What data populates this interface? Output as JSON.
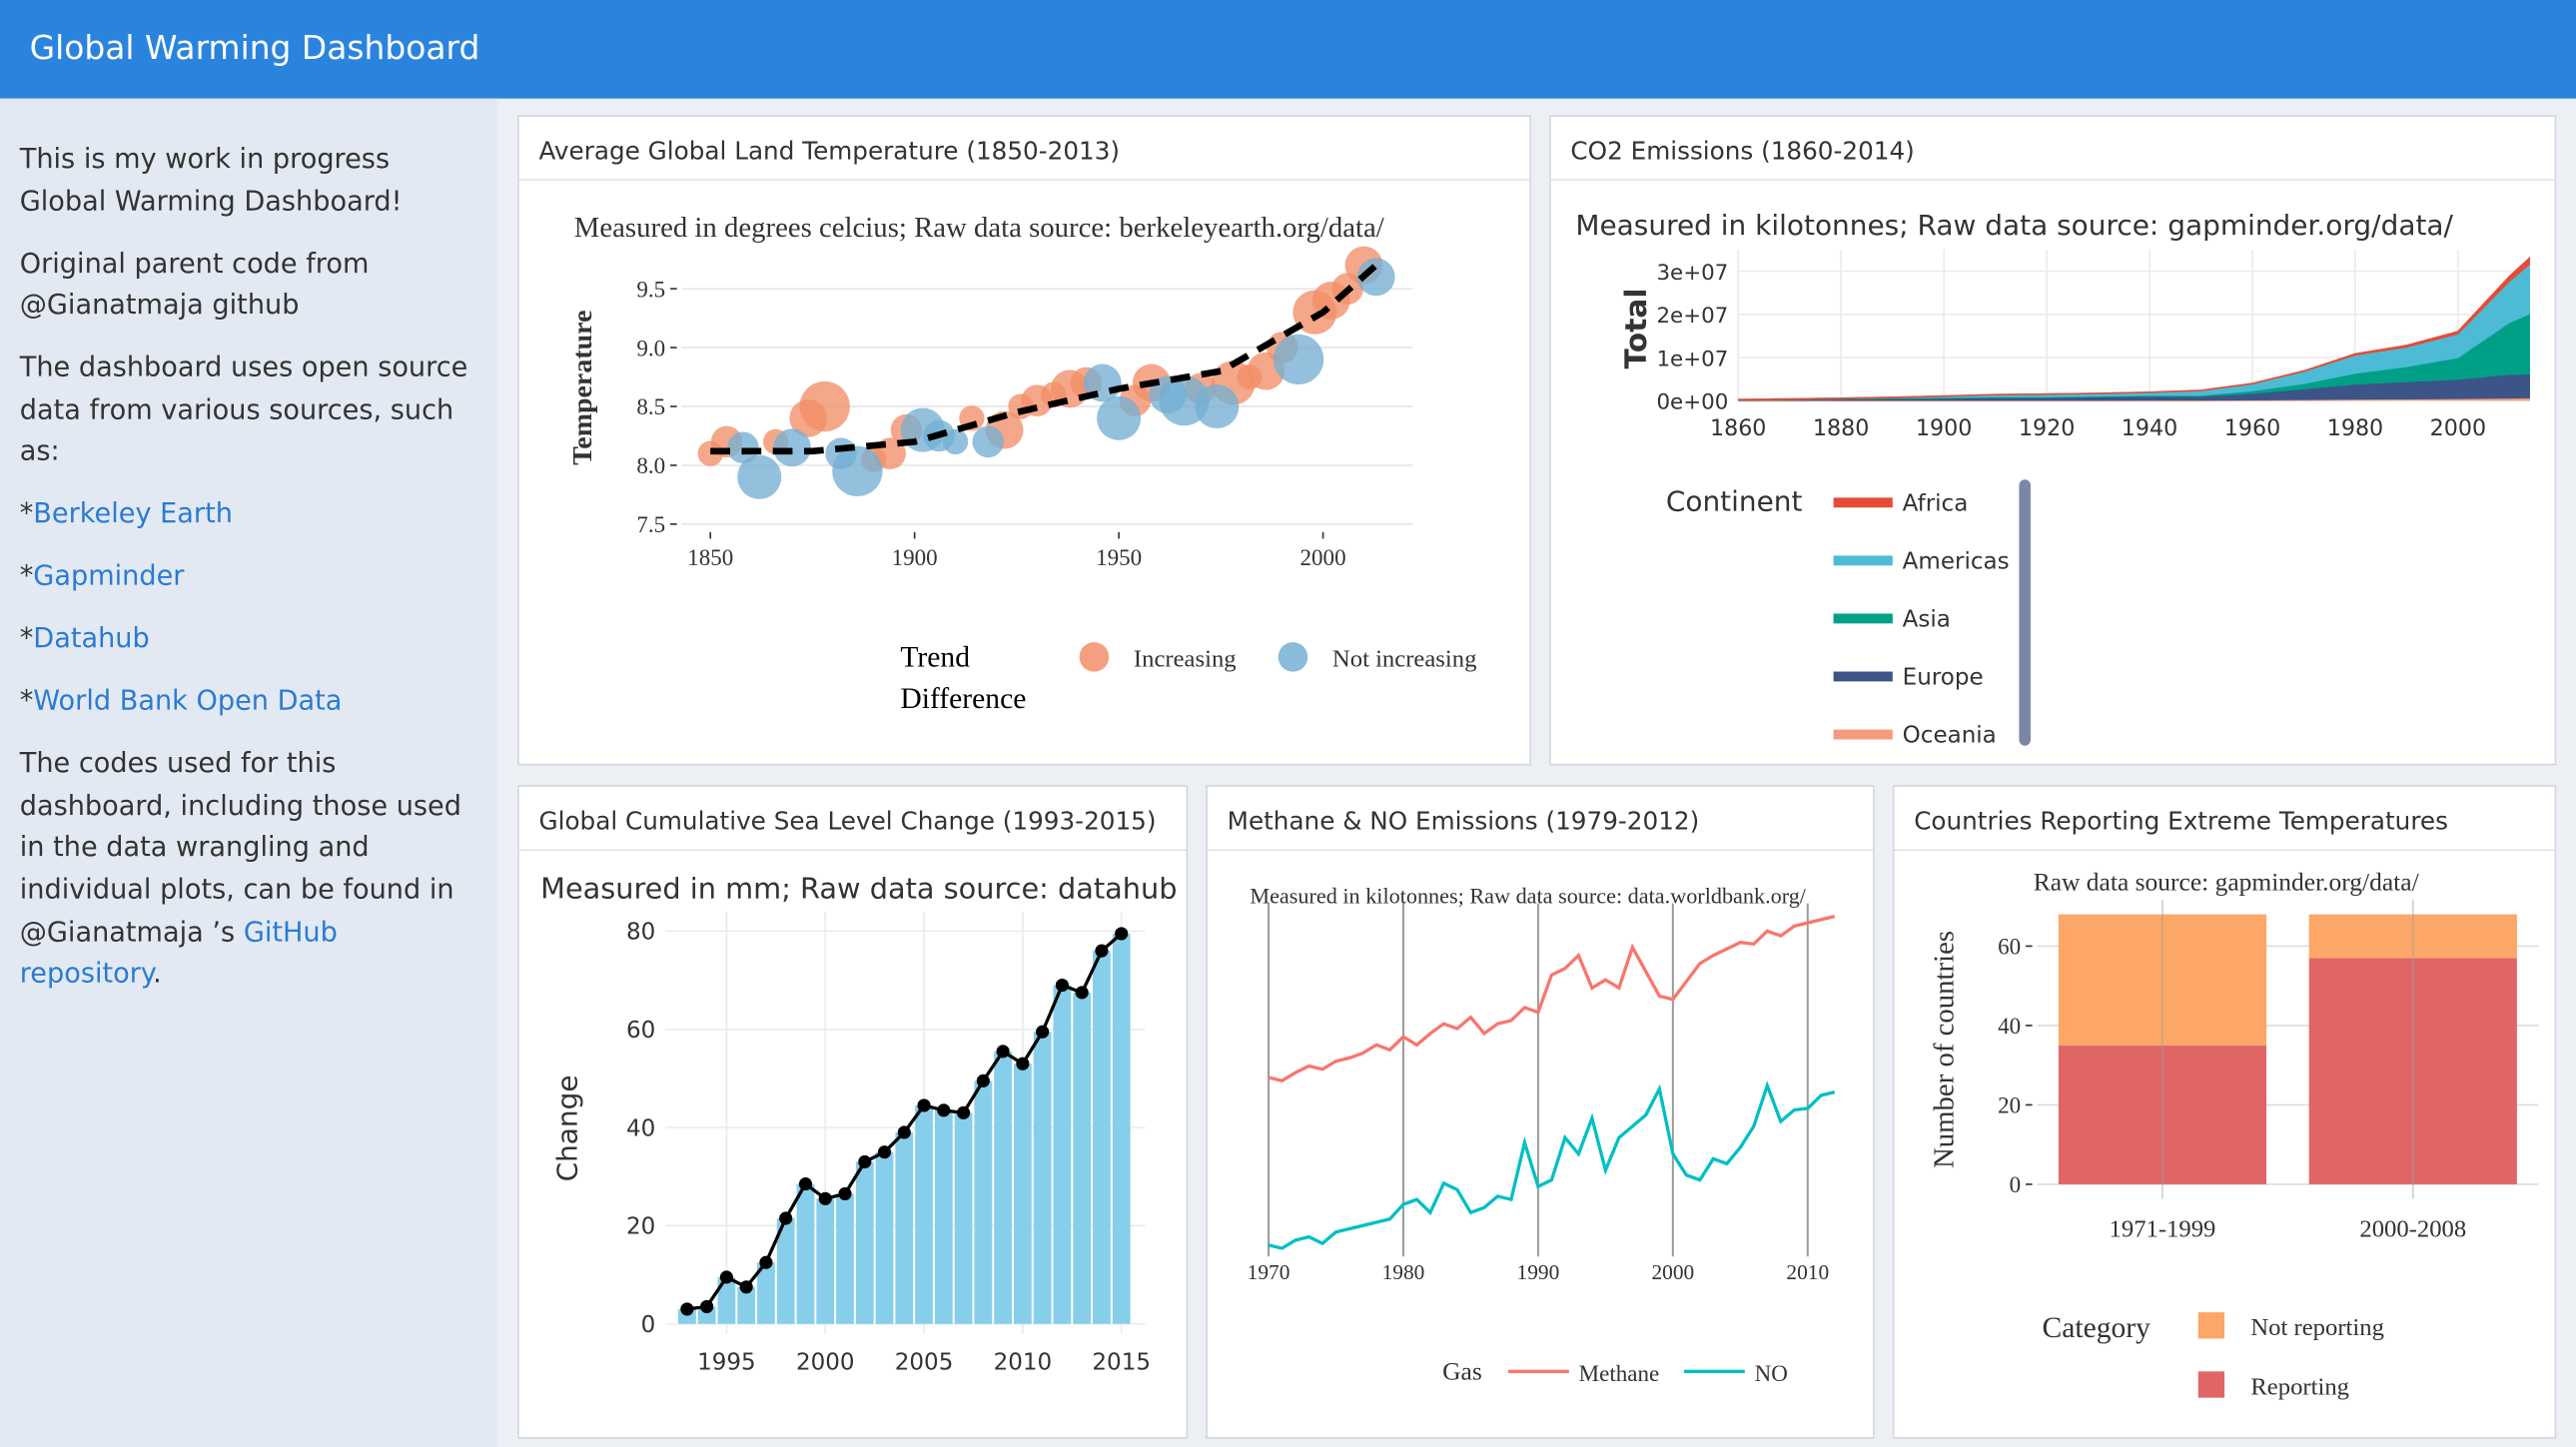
{
  "header": {
    "title": "Global Warming Dashboard"
  },
  "sidebar": {
    "paragraphs": [
      "This is my work in progress Global Warming Dashboard!",
      "Original parent code from @Gianatmaja github",
      "The dashboard uses open source data from various sources, such as:"
    ],
    "links": [
      {
        "prefix": "*",
        "text": "Berkeley Earth"
      },
      {
        "prefix": "*",
        "text": "Gapminder"
      },
      {
        "prefix": "*",
        "text": "Datahub"
      },
      {
        "prefix": "*",
        "text": "World Bank Open Data"
      }
    ],
    "closing": {
      "text": "The codes used for this dashboard, including those used in the data wrangling and individual plots, can be found in @Gianatmaja ’s ",
      "link": "GitHub repository",
      "end": "."
    }
  },
  "chart_data": [
    {
      "type": "scatter",
      "title": "Average Global Land Temperature (1850-2013)",
      "subtitle": "Measured in degrees celcius; Raw data source: berkeleyearth.org/data/",
      "y_label": "Temperature",
      "legend_title": "Trend Difference",
      "grid": true,
      "xlim": [
        1843,
        2022
      ],
      "xticks": [
        1850,
        1900,
        1950,
        2000
      ],
      "ylim": [
        7.46,
        9.86
      ],
      "yticks": [
        7.5,
        {
          "value": 8,
          "label": "8.0"
        },
        8.5,
        {
          "value": 9,
          "label": "9.0"
        },
        9.5
      ],
      "series": [
        {
          "name": "Increasing",
          "color": "#f28e68",
          "x": [
            1850,
            1854,
            1866,
            1874,
            1878,
            1890,
            1894,
            1898,
            1914,
            1922,
            1926,
            1930,
            1934,
            1938,
            1942,
            1954,
            1958,
            1970,
            1978,
            1982,
            1986,
            1990,
            1998,
            2002,
            2006,
            2010
          ],
          "values": [
            8.1,
            8.2,
            8.2,
            8.4,
            8.5,
            8.05,
            8.1,
            8.3,
            8.4,
            8.3,
            8.5,
            8.55,
            8.6,
            8.65,
            8.7,
            8.55,
            8.7,
            8.65,
            8.7,
            8.75,
            8.8,
            9.0,
            9.3,
            9.4,
            9.5,
            9.7
          ],
          "sizes": [
            3,
            4,
            3,
            5,
            7,
            3,
            4,
            4,
            3,
            5,
            3,
            4,
            3,
            5,
            4,
            4,
            5,
            4,
            6,
            3,
            5,
            4,
            6,
            5,
            4,
            5
          ]
        },
        {
          "name": "Not increasing",
          "color": "#74afd4",
          "x": [
            1858,
            1862,
            1870,
            1882,
            1886,
            1902,
            1906,
            1910,
            1918,
            1946,
            1950,
            1962,
            1966,
            1974,
            1994,
            2013
          ],
          "values": [
            8.15,
            7.9,
            8.15,
            8.1,
            7.95,
            8.3,
            8.25,
            8.2,
            8.2,
            8.7,
            8.4,
            8.6,
            8.55,
            8.5,
            8.9,
            9.6
          ],
          "sizes": [
            4,
            6,
            5,
            4,
            7,
            6,
            4,
            3,
            4,
            5,
            6,
            5,
            7,
            6,
            7,
            5
          ]
        }
      ],
      "trend": {
        "color": "#000000",
        "x": [
          1850,
          1875,
          1900,
          1925,
          1950,
          1975,
          2000,
          2013
        ],
        "values": [
          8.12,
          8.12,
          8.2,
          8.45,
          8.65,
          8.8,
          9.3,
          9.7
        ]
      }
    },
    {
      "type": "area",
      "title": "CO2 Emissions (1860-2014)",
      "subtitle": "Measured in kilotonnes; Raw data source: gapminder.org/data/",
      "y_label": "Total",
      "legend_title": "Continent",
      "grid": true,
      "xlim": [
        1860,
        2014
      ],
      "xticks": [
        1860,
        1880,
        1900,
        1920,
        1940,
        1960,
        1980,
        2000
      ],
      "ylim": [
        0,
        35000000
      ],
      "yticks": [
        {
          "value": 0,
          "label": "0e+00"
        },
        {
          "value": 10000000,
          "label": "1e+07"
        },
        {
          "value": 20000000,
          "label": "2e+07"
        },
        {
          "value": 30000000,
          "label": "3e+07"
        }
      ],
      "x": [
        1860,
        1870,
        1880,
        1890,
        1900,
        1910,
        1920,
        1930,
        1940,
        1950,
        1960,
        1970,
        1980,
        1990,
        2000,
        2010,
        2014
      ],
      "series": [
        {
          "name": "Africa",
          "color": "#e64b35",
          "values": [
            0,
            0,
            0,
            2000,
            5000,
            10000,
            15000,
            20000,
            30000,
            60000,
            120000,
            250000,
            400000,
            500000,
            650000,
            1300000,
            1600000
          ]
        },
        {
          "name": "Americas",
          "color": "#4dbbd5",
          "values": [
            50000,
            80000,
            150000,
            250000,
            400000,
            600000,
            700000,
            700000,
            800000,
            1200000,
            1700000,
            2800000,
            4200000,
            4500000,
            5500000,
            9500000,
            11500000
          ]
        },
        {
          "name": "Asia",
          "color": "#00a087",
          "values": [
            10000,
            15000,
            20000,
            30000,
            50000,
            80000,
            100000,
            150000,
            200000,
            200000,
            600000,
            1200000,
            2500000,
            3500000,
            5000000,
            12000000,
            14000000
          ]
        },
        {
          "name": "Europe",
          "color": "#3c5488",
          "values": [
            200000,
            300000,
            400000,
            500000,
            600000,
            700000,
            700000,
            800000,
            900000,
            900000,
            1500000,
            2500000,
            3500000,
            4000000,
            4500000,
            5500000,
            5500000
          ]
        },
        {
          "name": "Oceania",
          "color": "#f39b7f",
          "values": [
            2000,
            3000,
            5000,
            8000,
            12000,
            15000,
            20000,
            25000,
            30000,
            40000,
            80000,
            150000,
            250000,
            300000,
            380000,
            500000,
            550000
          ]
        }
      ]
    },
    {
      "type": "bar",
      "title": "Global Cumulative Sea Level Change (1993-2015)",
      "subtitle": "Measured in mm; Raw data source: datahub",
      "y_label": "Change",
      "grid": true,
      "color": "#87ceeb",
      "line_color": "#000000",
      "xlim": [
        1991.9,
        2016.2
      ],
      "xticks": [
        1995,
        2000,
        2005,
        2010,
        2015
      ],
      "ylim": [
        -2,
        84
      ],
      "yticks": [
        0,
        20,
        40,
        60,
        80
      ],
      "x": [
        1993,
        1994,
        1995,
        1996,
        1997,
        1998,
        1999,
        2000,
        2001,
        2002,
        2003,
        2004,
        2005,
        2006,
        2007,
        2008,
        2009,
        2010,
        2011,
        2012,
        2013,
        2014,
        2015
      ],
      "values": [
        3,
        3.5,
        9.5,
        7.5,
        12.5,
        21.5,
        28.5,
        25.5,
        26.5,
        33,
        35,
        39,
        44.5,
        43.5,
        43,
        49.5,
        55.5,
        53,
        59.5,
        69,
        67.5,
        76,
        79.5
      ]
    },
    {
      "type": "line",
      "title": "Methane & NO Emissions (1979-2012)",
      "subtitle": "Measured in kilotonnes; Raw data source: data.worldbank.org/",
      "legend_title": "Gas",
      "grid": true,
      "xlim": [
        1967.3,
        2012.4
      ],
      "xticks": [
        1970,
        1980,
        1990,
        2000,
        2010
      ],
      "ylim": [
        2500000,
        7925000
      ],
      "x": [
        1970,
        1971,
        1972,
        1973,
        1974,
        1975,
        1976,
        1977,
        1978,
        1979,
        1980,
        1981,
        1982,
        1983,
        1984,
        1985,
        1986,
        1987,
        1988,
        1989,
        1990,
        1991,
        1992,
        1993,
        1994,
        1995,
        1996,
        1997,
        1998,
        1999,
        2000,
        2001,
        2002,
        2003,
        2004,
        2005,
        2006,
        2007,
        2008,
        2009,
        2010,
        2011,
        2012
      ],
      "series": [
        {
          "name": "Methane",
          "color": "#f8766d",
          "values": [
            5250000,
            5200000,
            5325000,
            5425000,
            5375000,
            5500000,
            5550000,
            5625000,
            5750000,
            5675000,
            5875000,
            5750000,
            5925000,
            6075000,
            6000000,
            6175000,
            5925000,
            6075000,
            6125000,
            6325000,
            6250000,
            6825000,
            6925000,
            7125000,
            6625000,
            6750000,
            6625000,
            7250000,
            6875000,
            6500000,
            6450000,
            6725000,
            7000000,
            7125000,
            7225000,
            7325000,
            7300000,
            7500000,
            7425000,
            7575000,
            7625000,
            7675000,
            7725000
          ]
        },
        {
          "name": "NO",
          "color": "#00bfc4",
          "values": [
            2675000,
            2625000,
            2750000,
            2800000,
            2700000,
            2875000,
            2925000,
            2975000,
            3025000,
            3075000,
            3300000,
            3375000,
            3175000,
            3625000,
            3525000,
            3175000,
            3250000,
            3425000,
            3375000,
            4250000,
            3575000,
            3675000,
            4325000,
            4075000,
            4625000,
            3825000,
            4325000,
            4500000,
            4675000,
            5075000,
            4075000,
            3750000,
            3675000,
            4000000,
            3925000,
            4175000,
            4500000,
            5125000,
            4575000,
            4750000,
            4775000,
            4975000,
            5025000
          ]
        }
      ]
    },
    {
      "type": "stacked_bar",
      "title": "Countries Reporting Extreme Temperatures",
      "subtitle": "Raw data source: gapminder.org/data/",
      "y_label": "Number of countries",
      "legend_title": "Category",
      "grid": true,
      "categories": [
        "1971-1999",
        "2000-2008"
      ],
      "ylim": [
        -3.7,
        71.6
      ],
      "yticks": [
        0,
        20,
        40,
        60
      ],
      "series": [
        {
          "name": "Not reporting",
          "color": "#fca768",
          "values": [
            33,
            11
          ]
        },
        {
          "name": "Reporting",
          "color": "#e06666",
          "values": [
            35,
            57
          ]
        }
      ]
    }
  ]
}
